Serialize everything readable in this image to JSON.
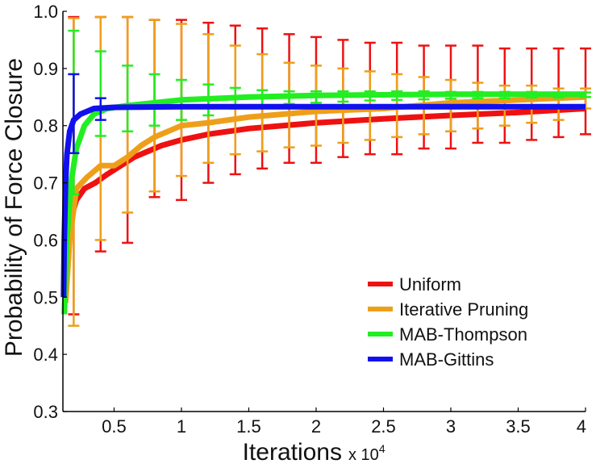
{
  "chart_data": {
    "type": "line",
    "xlabel": "Iterations",
    "x_multiplier_label": "x 10",
    "x_multiplier_exponent": "4",
    "ylabel": "Probability of Force Closure",
    "xlim": [
      0.12,
      4.0
    ],
    "ylim": [
      0.3,
      1.0
    ],
    "x_tick_values": [
      0.5,
      1,
      1.5,
      2,
      2.5,
      3,
      3.5,
      4
    ],
    "x_ticks": [
      "0.5",
      "1",
      "1.5",
      "2",
      "2.5",
      "3",
      "3.5",
      "4"
    ],
    "y_tick_values": [
      0.3,
      0.4,
      0.5,
      0.6,
      0.7,
      0.8,
      0.9,
      1.0
    ],
    "y_ticks": [
      "0.3",
      "0.4",
      "0.5",
      "0.6",
      "0.7",
      "0.8",
      "0.9",
      "1.0"
    ],
    "legend_position": "lower-right",
    "series": [
      {
        "name": "Uniform",
        "color": "#ee1111",
        "x": [
          0.14,
          0.17,
          0.22,
          0.28,
          0.36,
          0.45,
          0.55,
          0.65,
          0.75,
          0.85,
          1.0,
          1.2,
          1.5,
          2.0,
          2.5,
          3.0,
          3.5,
          4.0
        ],
        "y": [
          0.56,
          0.63,
          0.67,
          0.69,
          0.7,
          0.715,
          0.73,
          0.745,
          0.755,
          0.765,
          0.775,
          0.785,
          0.795,
          0.805,
          0.812,
          0.818,
          0.823,
          0.83
        ],
        "errorbars": {
          "x": [
            0.2,
            0.4,
            0.6,
            0.8,
            1.0,
            1.2,
            1.4,
            1.6,
            1.8,
            2.0,
            2.2,
            2.4,
            2.6,
            2.8,
            3.0,
            3.2,
            3.4,
            3.6,
            3.8,
            4.0
          ],
          "lower": [
            0.47,
            0.58,
            0.595,
            0.675,
            0.67,
            0.7,
            0.715,
            0.725,
            0.735,
            0.735,
            0.745,
            0.75,
            0.75,
            0.76,
            0.76,
            0.77,
            0.77,
            0.775,
            0.78,
            0.785
          ],
          "upper": [
            0.99,
            0.99,
            0.99,
            0.985,
            0.985,
            0.98,
            0.975,
            0.97,
            0.96,
            0.955,
            0.95,
            0.945,
            0.945,
            0.94,
            0.94,
            0.94,
            0.935,
            0.935,
            0.935,
            0.935
          ]
        }
      },
      {
        "name": "Iterative Pruning",
        "color": "#ee9f1a",
        "x": [
          0.14,
          0.17,
          0.22,
          0.3,
          0.4,
          0.5,
          0.6,
          0.7,
          0.8,
          0.9,
          1.0,
          1.2,
          1.5,
          2.0,
          2.5,
          3.0,
          3.5,
          4.0
        ],
        "y": [
          0.49,
          0.6,
          0.69,
          0.71,
          0.73,
          0.73,
          0.745,
          0.765,
          0.78,
          0.79,
          0.8,
          0.805,
          0.815,
          0.825,
          0.83,
          0.84,
          0.845,
          0.85
        ],
        "errorbars": {
          "x": [
            0.2,
            0.4,
            0.6,
            0.8,
            1.0,
            1.2,
            1.4,
            1.6,
            1.8,
            2.0,
            2.2,
            2.4,
            2.6,
            2.8,
            3.0,
            3.2,
            3.4,
            3.6,
            3.8,
            4.0
          ],
          "lower": [
            0.45,
            0.6,
            0.648,
            0.685,
            0.712,
            0.735,
            0.75,
            0.755,
            0.762,
            0.765,
            0.77,
            0.775,
            0.78,
            0.785,
            0.79,
            0.795,
            0.8,
            0.805,
            0.81,
            0.83
          ],
          "upper": [
            0.988,
            0.99,
            0.99,
            0.985,
            0.978,
            0.96,
            0.94,
            0.925,
            0.91,
            0.905,
            0.9,
            0.895,
            0.89,
            0.885,
            0.88,
            0.875,
            0.87,
            0.87,
            0.865,
            0.865
          ]
        }
      },
      {
        "name": "MAB-Thompson",
        "color": "#22ee22",
        "x": [
          0.13,
          0.15,
          0.18,
          0.22,
          0.28,
          0.35,
          0.45,
          0.6,
          0.8,
          1.0,
          1.5,
          2.0,
          2.5,
          3.0,
          3.5,
          4.0
        ],
        "y": [
          0.47,
          0.6,
          0.7,
          0.76,
          0.8,
          0.82,
          0.83,
          0.835,
          0.84,
          0.845,
          0.85,
          0.853,
          0.854,
          0.855,
          0.855,
          0.855
        ],
        "errorbars": {
          "x": [
            0.2,
            0.4,
            0.6,
            0.8,
            1.0,
            1.2,
            1.4,
            1.6,
            1.8,
            2.0,
            2.2,
            2.4,
            2.6,
            2.8,
            3.0,
            3.2,
            3.4,
            3.6,
            3.8,
            4.0
          ],
          "lower": [
            0.68,
            0.782,
            0.79,
            0.8,
            0.81,
            0.818,
            0.83,
            0.835,
            0.838,
            0.84,
            0.842,
            0.844,
            0.845,
            0.846,
            0.847,
            0.848,
            0.848,
            0.849,
            0.849,
            0.85
          ],
          "upper": [
            0.966,
            0.93,
            0.905,
            0.89,
            0.88,
            0.872,
            0.866,
            0.862,
            0.86,
            0.86,
            0.86,
            0.86,
            0.86,
            0.86,
            0.859,
            0.859,
            0.859,
            0.859,
            0.858,
            0.858
          ]
        }
      },
      {
        "name": "MAB-Gittins",
        "color": "#1111ee",
        "x": [
          0.125,
          0.13,
          0.14,
          0.15,
          0.17,
          0.2,
          0.25,
          0.3,
          0.35,
          0.5,
          1.0,
          2.0,
          3.0,
          4.0
        ],
        "y": [
          0.5,
          0.6,
          0.7,
          0.75,
          0.79,
          0.81,
          0.82,
          0.825,
          0.83,
          0.832,
          0.833,
          0.833,
          0.833,
          0.833
        ],
        "errorbars": {
          "x": [
            0.2,
            0.4
          ],
          "lower": [
            0.752,
            0.81
          ],
          "upper": [
            0.89,
            0.848
          ]
        }
      }
    ]
  }
}
